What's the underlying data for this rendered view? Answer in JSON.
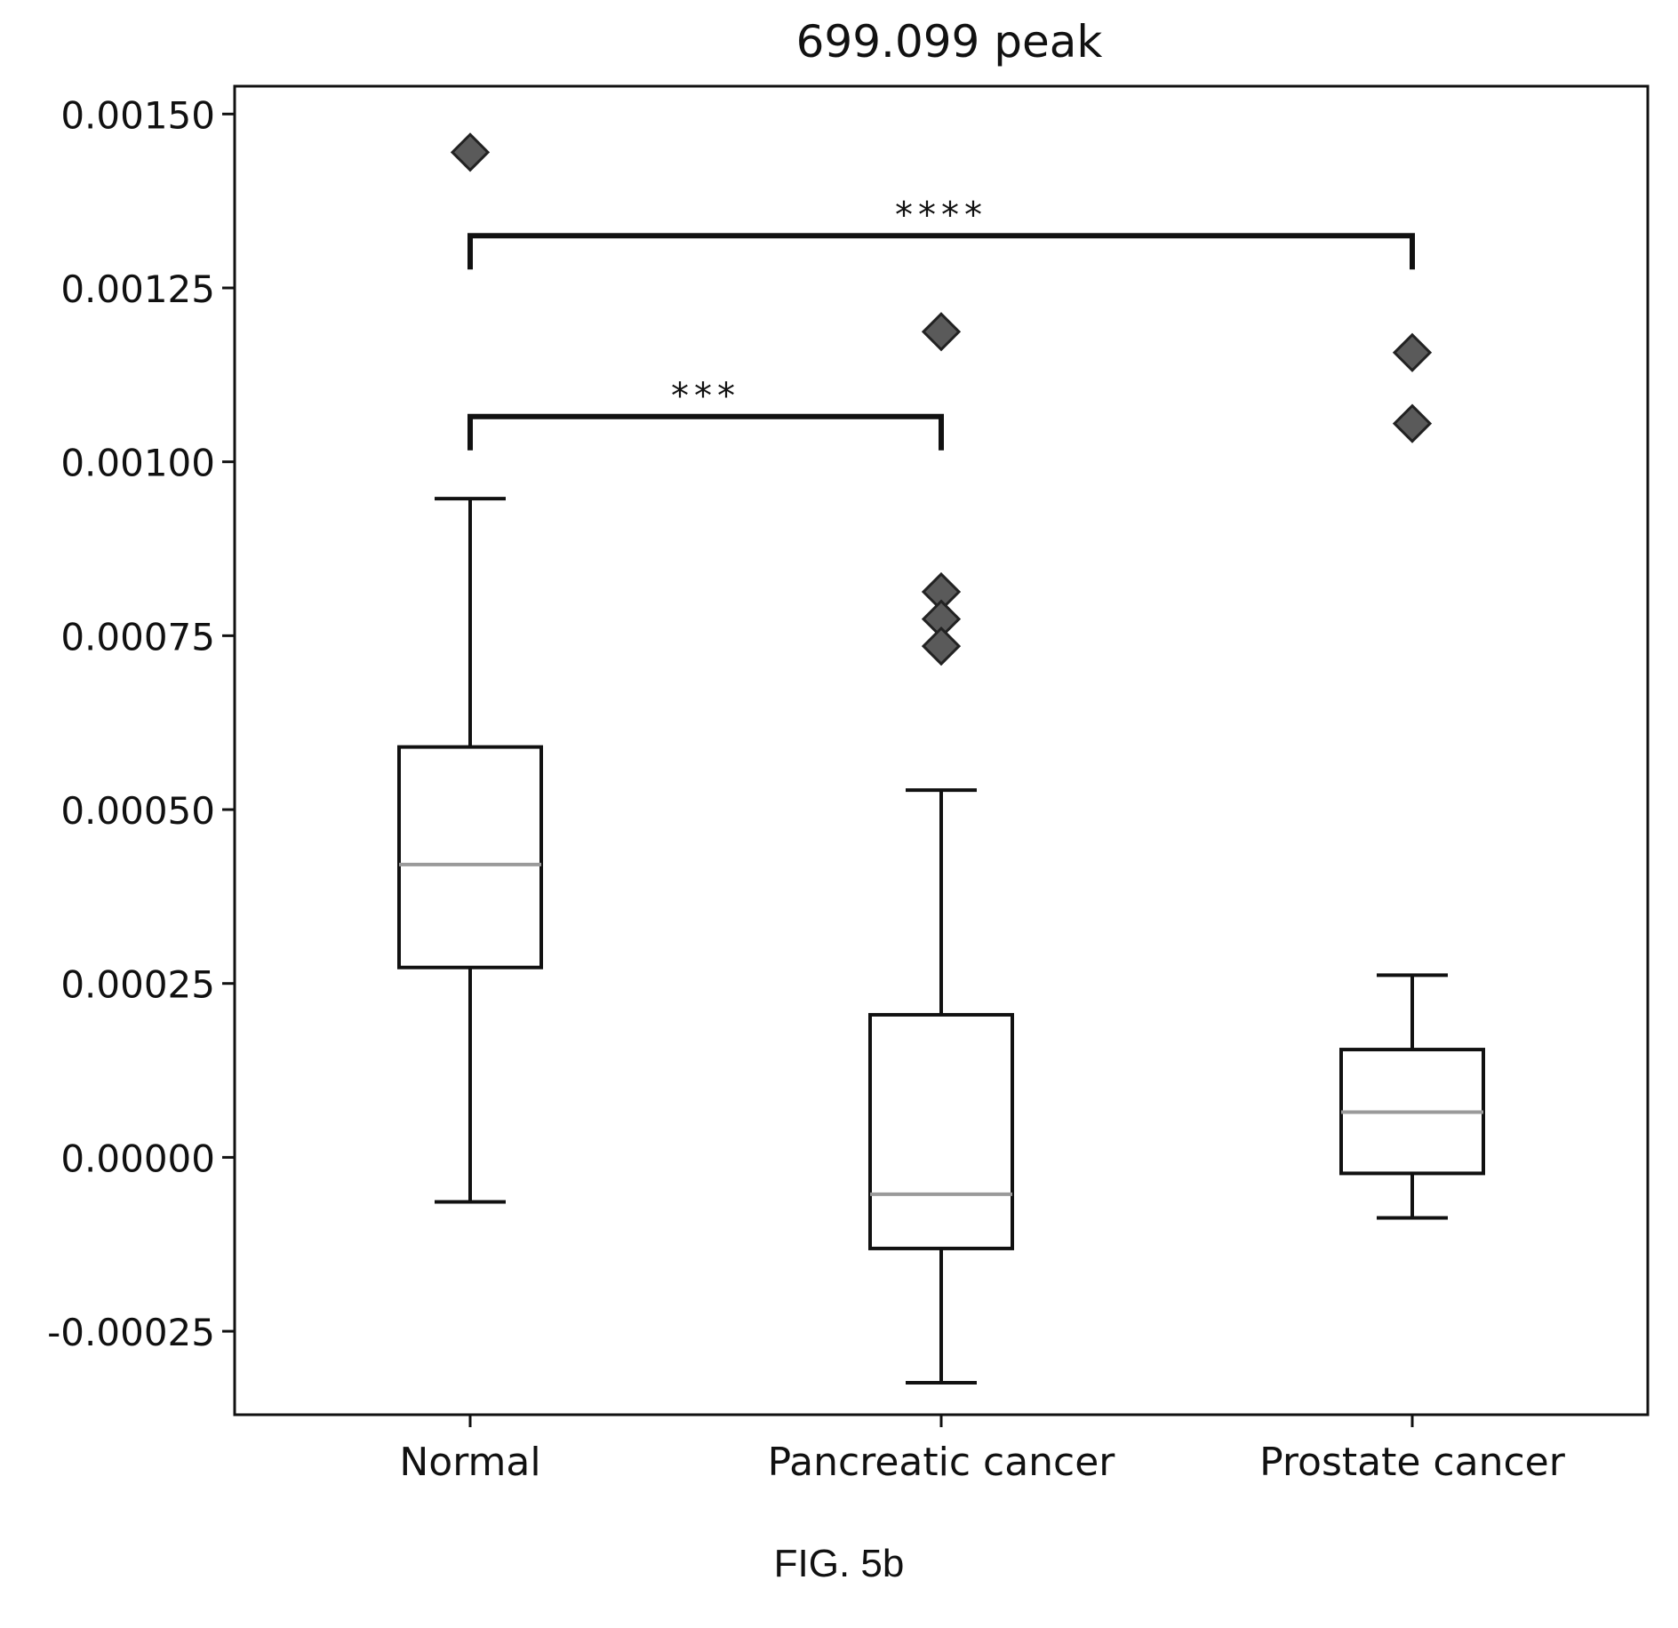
{
  "figure_caption": "FIG. 5b",
  "chart_data": {
    "type": "box",
    "title": "699.099 peak",
    "xlabel": "",
    "ylabel": "",
    "ylim": [
      -0.00037,
      0.00154
    ],
    "yticks": [
      -0.00025,
      0.0,
      0.00025,
      0.0005,
      0.00075,
      0.001,
      0.00125,
      0.0015
    ],
    "ytick_labels": [
      "-0.00025",
      "0.00000",
      "0.00025",
      "0.00050",
      "0.00075",
      "0.00100",
      "0.00125",
      "0.00150"
    ],
    "categories": [
      "Normal",
      "Pancreatic cancer",
      "Prostate cancer"
    ],
    "boxes": [
      {
        "category": "Normal",
        "whisker_low": -6.4e-05,
        "q1": 0.000273,
        "median": 0.000421,
        "q3": 0.00059,
        "whisker_high": 0.000947,
        "outliers": [
          0.001445
        ]
      },
      {
        "category": "Pancreatic cancer",
        "whisker_low": -0.000324,
        "q1": -0.000131,
        "median": -5.3e-05,
        "q3": 0.000205,
        "whisker_high": 0.000528,
        "outliers": [
          0.001187,
          0.000813,
          0.000774,
          0.000735
        ]
      },
      {
        "category": "Prostate cancer",
        "whisker_low": -8.7e-05,
        "q1": -2.3e-05,
        "median": 6.5e-05,
        "q3": 0.000155,
        "whisker_high": 0.000262,
        "outliers": [
          0.001157,
          0.001055
        ]
      }
    ],
    "significance": [
      {
        "from": "Normal",
        "to": "Pancreatic cancer",
        "y": 0.001065,
        "label": "***"
      },
      {
        "from": "Normal",
        "to": "Prostate cancer",
        "y": 0.001325,
        "label": "****"
      }
    ],
    "grid": false,
    "legend": "none"
  },
  "colors": {
    "axes": "#111111",
    "box_edge": "#111111",
    "median": "#9a9a9a",
    "outlier_fill": "#5a5a5a",
    "outlier_edge": "#222222"
  }
}
